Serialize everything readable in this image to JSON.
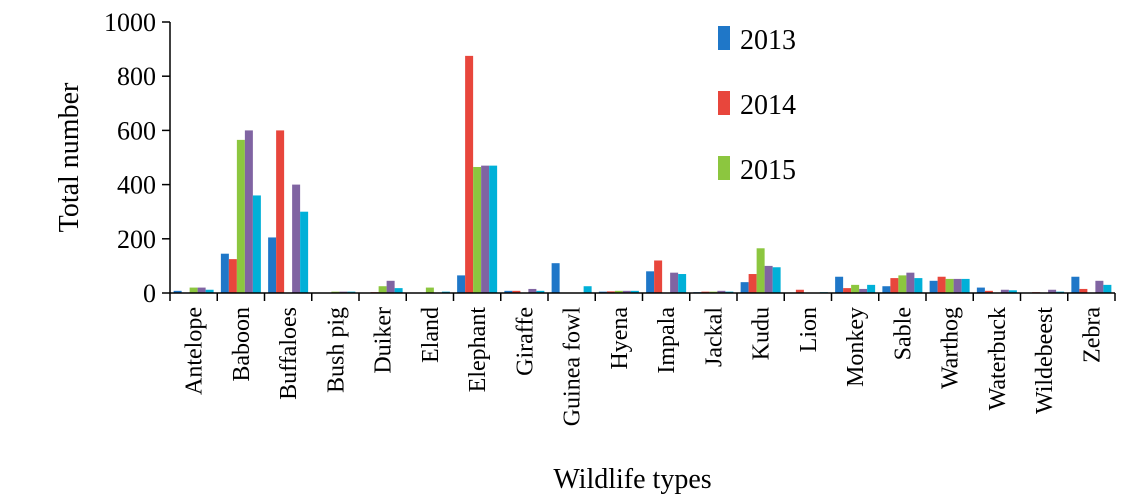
{
  "chart_data": {
    "type": "bar",
    "xlabel": "Wildlife types",
    "ylabel": "Total number",
    "ylim": [
      0,
      1000
    ],
    "yticks": [
      0,
      200,
      400,
      600,
      800,
      1000
    ],
    "grid": false,
    "legend_position": "top-right",
    "categories": [
      "Antelope",
      "Baboon",
      "Buffaloes",
      "Bush pig",
      "Duiker",
      "Eland",
      "Elephant",
      "Giraffe",
      "Guinea fowl",
      "Hyena",
      "Impala",
      "Jackal",
      "Kudu",
      "Lion",
      "Monkey",
      "Sable",
      "Warthog",
      "Waterbuck",
      "Wildebeest",
      "Zebra"
    ],
    "series": [
      {
        "name": "2013",
        "color": "#1f77c8",
        "values": [
          8,
          145,
          205,
          0,
          0,
          0,
          65,
          8,
          110,
          5,
          80,
          3,
          40,
          0,
          60,
          25,
          45,
          20,
          0,
          60
        ]
      },
      {
        "name": "2014",
        "color": "#e8463c",
        "values": [
          0,
          125,
          600,
          0,
          3,
          0,
          875,
          8,
          0,
          6,
          120,
          5,
          70,
          12,
          18,
          55,
          60,
          8,
          3,
          15
        ]
      },
      {
        "name": "2015",
        "color": "#8cc63f",
        "values": [
          20,
          565,
          0,
          5,
          25,
          20,
          465,
          0,
          0,
          8,
          0,
          5,
          165,
          0,
          30,
          65,
          52,
          0,
          0,
          0
        ]
      },
      {
        "values": [
          20,
          600,
          400,
          5,
          45,
          0,
          470,
          15,
          0,
          8,
          75,
          8,
          100,
          0,
          15,
          75,
          52,
          12,
          12,
          45
        ],
        "color": "#8064a2"
      },
      {
        "values": [
          12,
          360,
          300,
          5,
          18,
          5,
          470,
          8,
          25,
          8,
          70,
          5,
          95,
          3,
          30,
          55,
          52,
          10,
          5,
          30
        ],
        "color": "#00b0d8"
      }
    ]
  }
}
